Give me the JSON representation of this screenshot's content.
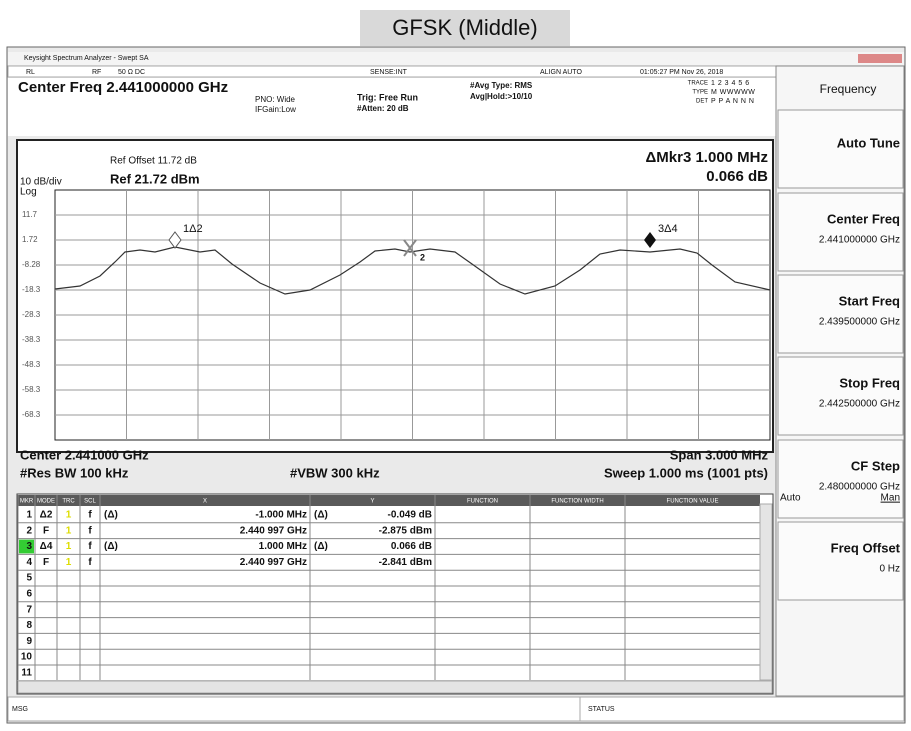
{
  "title": "GFSK (Middle)",
  "window": {
    "title_bar": "Keysight Spectrum Analyzer - Swept SA",
    "status": {
      "rl": "RL",
      "rf": "RF",
      "coupling": "50 Ω  DC",
      "sense": "SENSE:INT",
      "align": "ALIGN AUTO",
      "time": "01:05:27 PM Nov 26, 2018"
    },
    "center_freq": "Center Freq 2.441000000 GHz",
    "pno": "PNO: Wide",
    "ifgain": "IFGain:Low",
    "trig": "Trig: Free Run",
    "atten": "#Atten: 20 dB",
    "avg_type": "#Avg Type: RMS",
    "avg_hold": "Avg|Hold:>10/10",
    "trace_legend": [
      {
        "label": "TRACE",
        "value": "1 2 3 4 5 6"
      },
      {
        "label": "TYPE",
        "value": "M WWWWW"
      },
      {
        "label": "DET",
        "value": "P P A N N N"
      }
    ]
  },
  "graph": {
    "ref_offset": "Ref Offset 11.72 dB",
    "scale": "10 dB/div",
    "ref_level": "Ref 21.72 dBm",
    "log": "Log",
    "marker_readout": "ΔMkr3 1.000 MHz",
    "marker_value": "0.066 dB",
    "y_labels": [
      "11.7",
      "1.72",
      "-8.28",
      "-18.3",
      "-28.3",
      "-38.3",
      "-48.3",
      "-58.3",
      "-68.3"
    ],
    "marker_labels": [
      "1Δ2",
      "2",
      "3Δ4"
    ],
    "center": "Center 2.441000 GHz",
    "span": "Span 3.000 MHz",
    "res_bw": "#Res BW 100 kHz",
    "vbw": "#VBW 300 kHz",
    "sweep": "Sweep  1.000 ms (1001 pts)"
  },
  "table": {
    "headers": [
      "MKR",
      "MODE",
      "TRC",
      "SCL",
      "X",
      "Y",
      "FUNCTION",
      "FUNCTION WIDTH",
      "FUNCTION VALUE"
    ],
    "rows": [
      {
        "mkr": "1",
        "mode": "Δ2",
        "trc": "1",
        "scl": "f",
        "xfn": "(Δ)",
        "x": "-1.000 MHz",
        "yfn": "(Δ)",
        "y": "-0.049 dB"
      },
      {
        "mkr": "2",
        "mode": "F",
        "trc": "1",
        "scl": "f",
        "x": "2.440 997 GHz",
        "y": "-2.875 dBm"
      },
      {
        "mkr": "3",
        "mode": "Δ4",
        "trc": "1",
        "scl": "f",
        "xfn": "(Δ)",
        "x": "1.000 MHz",
        "yfn": "(Δ)",
        "y": "0.066 dB"
      },
      {
        "mkr": "4",
        "mode": "F",
        "trc": "1",
        "scl": "f",
        "x": "2.440 997 GHz",
        "y": "-2.841 dBm"
      },
      {
        "mkr": "5"
      },
      {
        "mkr": "6"
      },
      {
        "mkr": "7"
      },
      {
        "mkr": "8"
      },
      {
        "mkr": "9"
      },
      {
        "mkr": "10"
      },
      {
        "mkr": "11"
      }
    ]
  },
  "msg": "MSG",
  "status_label": "STATUS",
  "softkeys": {
    "menu_title": "Frequency",
    "keys": [
      {
        "label": "Auto Tune"
      },
      {
        "label": "Center Freq",
        "value": "2.441000000 GHz"
      },
      {
        "label": "Start Freq",
        "value": "2.439500000 GHz"
      },
      {
        "label": "Stop Freq",
        "value": "2.442500000 GHz"
      },
      {
        "label": "CF Step",
        "value": "2.480000000 GHz",
        "auto": "Auto",
        "man": "Man"
      },
      {
        "label": "Freq Offset",
        "value": "0 Hz"
      }
    ]
  }
}
